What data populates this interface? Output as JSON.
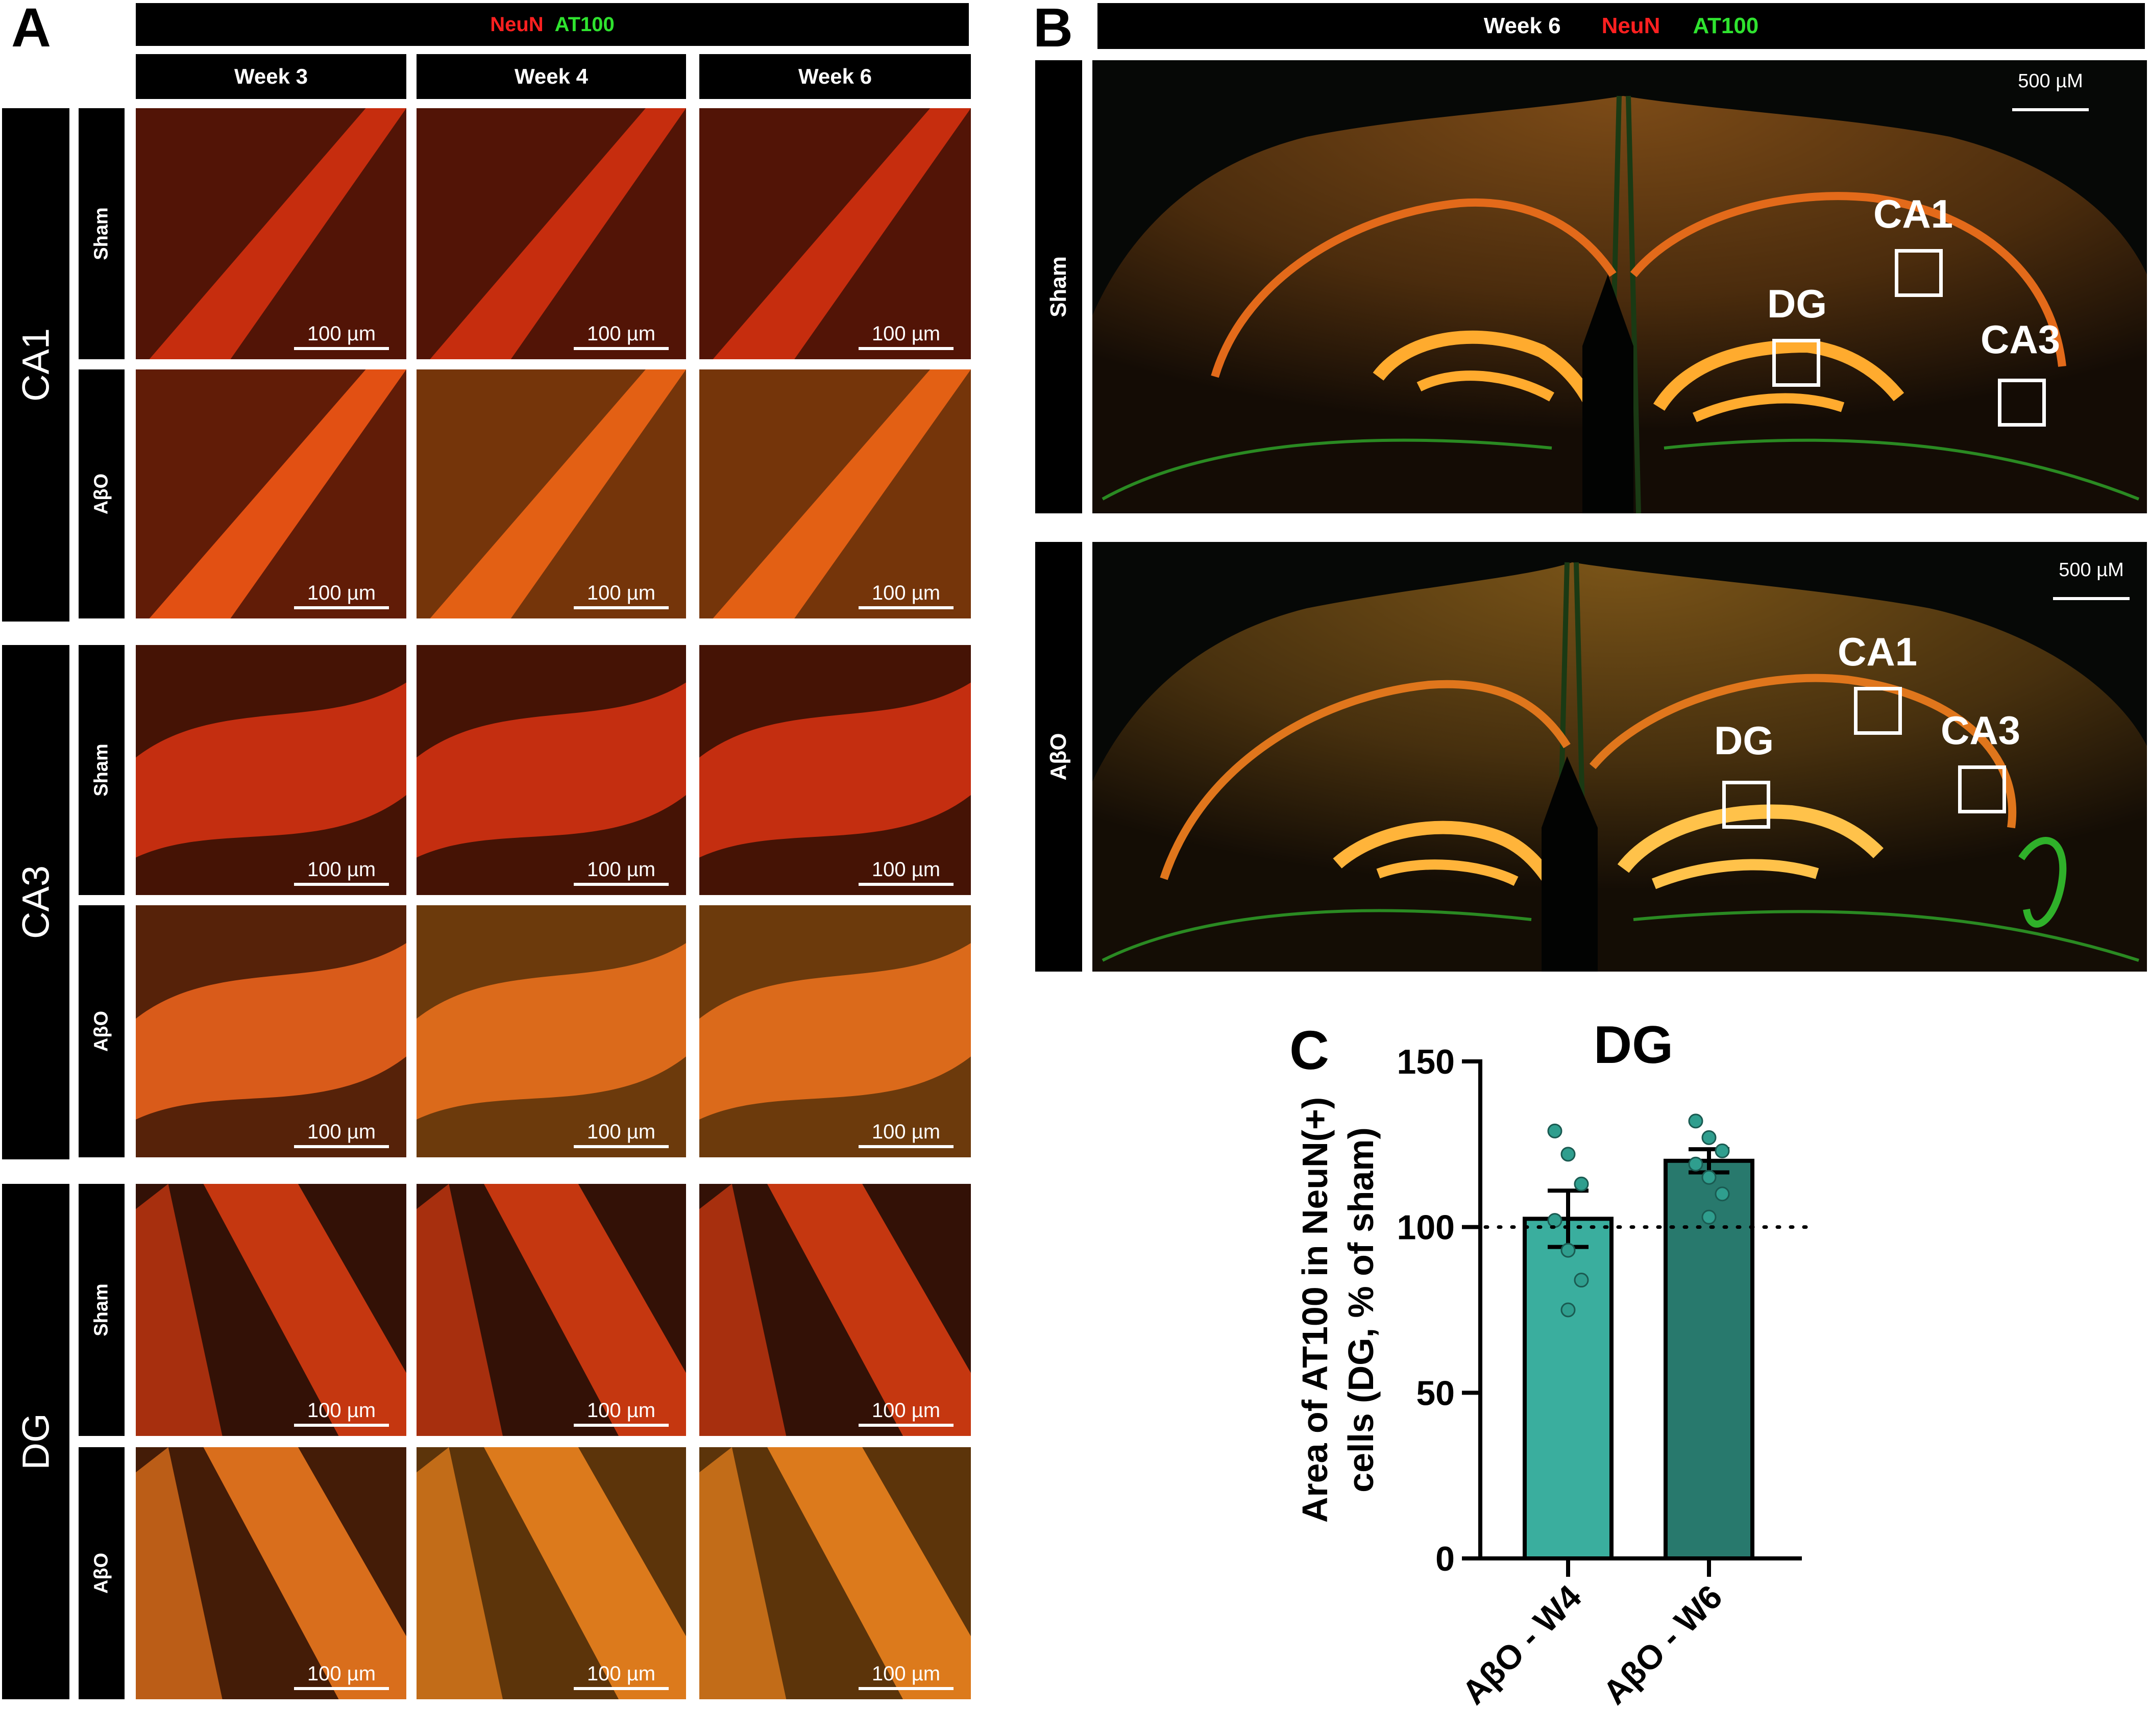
{
  "panel_a": {
    "letter": "A",
    "header": {
      "marker1": "NeuN",
      "marker2": "AT100"
    },
    "columns": [
      "Week 3",
      "Week 4",
      "Week 6"
    ],
    "regions": [
      "CA1",
      "CA3",
      "DG"
    ],
    "groups": [
      "Sham",
      "AβO"
    ],
    "scale_label": "100 µm"
  },
  "panel_b": {
    "letter": "B",
    "header": {
      "timepoint": "Week 6",
      "marker1": "NeuN",
      "marker2": "AT100"
    },
    "rows": [
      "Sham",
      "AβO"
    ],
    "scale_label": "500 µM",
    "roi_labels": {
      "ca1": "CA1",
      "ca3": "CA3",
      "dg": "DG"
    }
  },
  "panel_c": {
    "letter": "C",
    "chart_data": {
      "type": "bar",
      "title": "DG",
      "ylabel": "Area of AT100 in NeuN(+) cells (DG, % of sham)",
      "ylabel_lines": [
        "Area of AT100 in NeuN(+)",
        "cells (DG, % of sham)"
      ],
      "categories": [
        "AβO - W4",
        "AβO - W6"
      ],
      "values": [
        102.5,
        120
      ],
      "sem": [
        8.5,
        3.5
      ],
      "points": [
        [
          129,
          122,
          113,
          102,
          93,
          84,
          75
        ],
        [
          132,
          127,
          123,
          119,
          115,
          110,
          103
        ]
      ],
      "reference_line": 100,
      "ylim": [
        0,
        150
      ],
      "yticks": [
        0,
        50,
        100,
        150
      ],
      "colors": [
        "#3aae9e",
        "#28796d"
      ],
      "point_color": "#2f9e8e"
    }
  }
}
